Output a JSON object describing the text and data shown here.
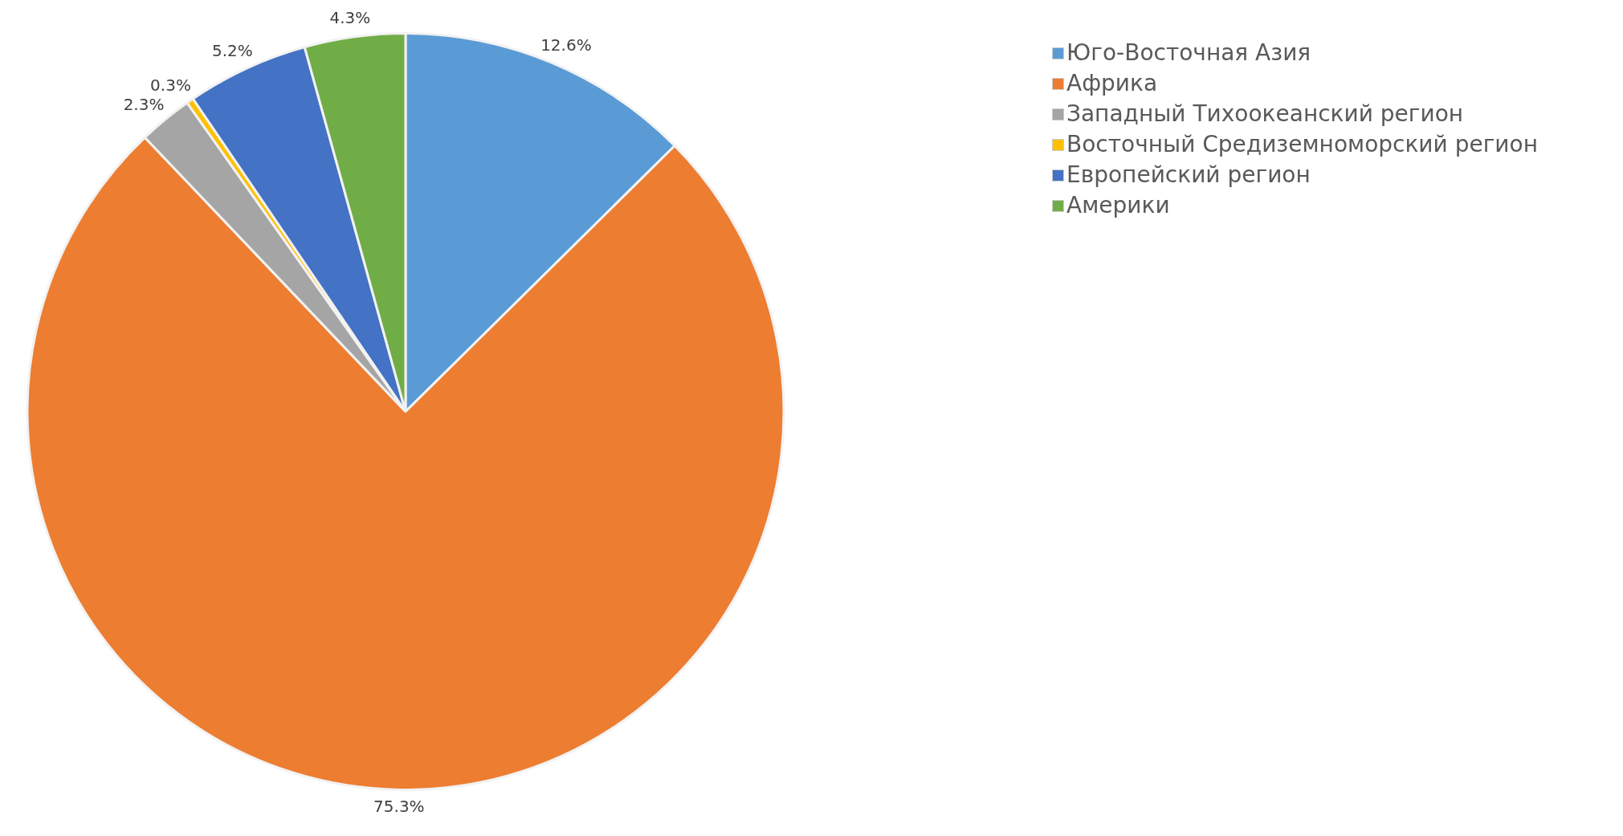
{
  "chart_data": {
    "type": "pie",
    "categories": [
      "Юго-Восточная Азия",
      "Африка",
      "Западный Тихоокеанский регион",
      "Восточный Средиземноморский регион",
      "Европейский регион",
      "Америки"
    ],
    "values": [
      12.6,
      75.3,
      2.3,
      0.3,
      5.2,
      4.3
    ],
    "colors": [
      "#5b9bd5",
      "#ed7d31",
      "#a5a5a5",
      "#ffc000",
      "#4472c4",
      "#70ad47"
    ],
    "value_labels": [
      "12.6%",
      "75.3%",
      "2.3%",
      "0.3%",
      "5.2%",
      "4.3%"
    ],
    "legend": "top right"
  }
}
